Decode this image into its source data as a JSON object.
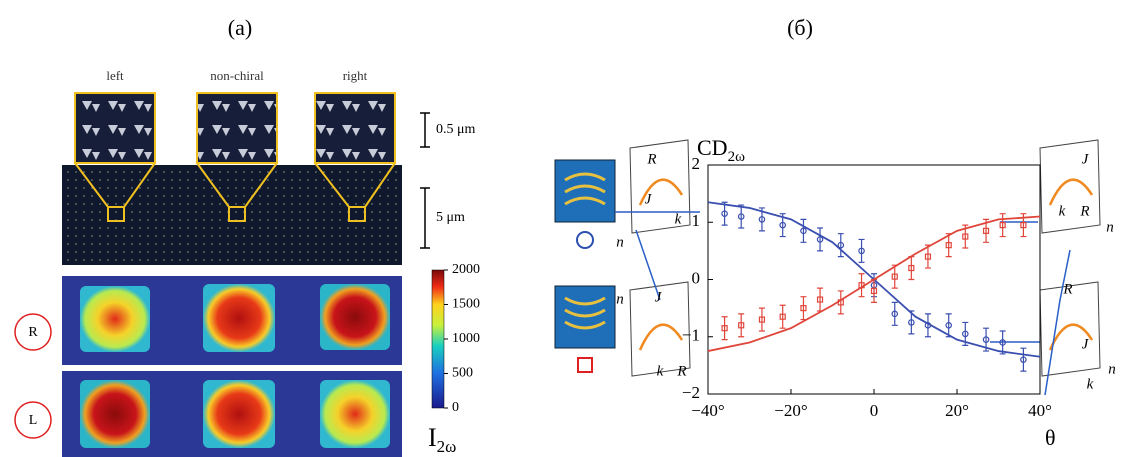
{
  "panel_a": {
    "label": "(a)",
    "columns": [
      "left",
      "non-chiral",
      "right"
    ],
    "scale_bars": [
      "0.5 μm",
      "5 μm"
    ],
    "rows": [
      "R",
      "L"
    ],
    "colorbar": {
      "lim": [
        0,
        2000
      ],
      "ticks": [
        0,
        500,
        1000,
        1500,
        2000
      ],
      "label_main": "I",
      "label_sub": "2ω"
    }
  },
  "diagrams": [
    {
      "labels": [
        "R",
        "J",
        "k",
        "n"
      ]
    },
    {
      "labels": [
        "J",
        "k",
        "R",
        "n"
      ]
    },
    {
      "labels": [
        "J",
        "k",
        "R",
        "n"
      ]
    },
    {
      "labels": [
        "R",
        "J",
        "n",
        "k"
      ]
    }
  ],
  "chart_data": {
    "type": "scatter",
    "panel_label": "(б)",
    "y_label_main": "CD",
    "y_label_sub": "2ω",
    "x_label": "θ",
    "xlim": [
      -40,
      40
    ],
    "ylim": [
      -2,
      2
    ],
    "xticks": [
      {
        "value": -40,
        "label": "−40°"
      },
      {
        "value": -20,
        "label": "−20°"
      },
      0,
      {
        "value": 20,
        "label": "20°"
      },
      {
        "value": 40,
        "label": "40°"
      }
    ],
    "yticks": [
      {
        "value": -2,
        "label": "−2"
      },
      {
        "value": -1,
        "label": "−1"
      },
      0,
      1,
      2
    ],
    "x": [
      -36,
      -32,
      -27,
      -22,
      -17,
      -13,
      -8,
      -3,
      0,
      5,
      9,
      13,
      18,
      22,
      27,
      31,
      36
    ],
    "fit_x": [
      -40,
      -30,
      -20,
      -10,
      0,
      10,
      20,
      30,
      40
    ],
    "series": [
      {
        "color": "#3a4fb0",
        "marker": "circle",
        "values": [
          1.15,
          1.1,
          1.05,
          0.95,
          0.85,
          0.7,
          0.6,
          0.5,
          -0.1,
          -0.6,
          -0.75,
          -0.8,
          -0.8,
          -0.95,
          -1.05,
          -1.1,
          -1.4
        ],
        "errors": [
          0.2,
          0.2,
          0.2,
          0.2,
          0.2,
          0.2,
          0.2,
          0.2,
          0.2,
          0.2,
          0.2,
          0.2,
          0.2,
          0.2,
          0.2,
          0.2,
          0.2
        ],
        "fit": [
          1.35,
          1.25,
          1.05,
          0.65,
          0,
          -0.65,
          -1.05,
          -1.25,
          -1.35
        ]
      },
      {
        "color": "#e0453a",
        "marker": "square",
        "values": [
          -0.85,
          -0.8,
          -0.7,
          -0.65,
          -0.5,
          -0.35,
          -0.4,
          -0.1,
          -0.2,
          0.05,
          0.2,
          0.4,
          0.6,
          0.75,
          0.85,
          0.95,
          0.95
        ],
        "errors": [
          0.2,
          0.2,
          0.2,
          0.2,
          0.2,
          0.2,
          0.2,
          0.2,
          0.2,
          0.2,
          0.2,
          0.2,
          0.2,
          0.2,
          0.2,
          0.2,
          0.2
        ],
        "fit": [
          -1.25,
          -1.1,
          -0.85,
          -0.45,
          0,
          0.45,
          0.85,
          1.05,
          1.1
        ]
      }
    ]
  }
}
